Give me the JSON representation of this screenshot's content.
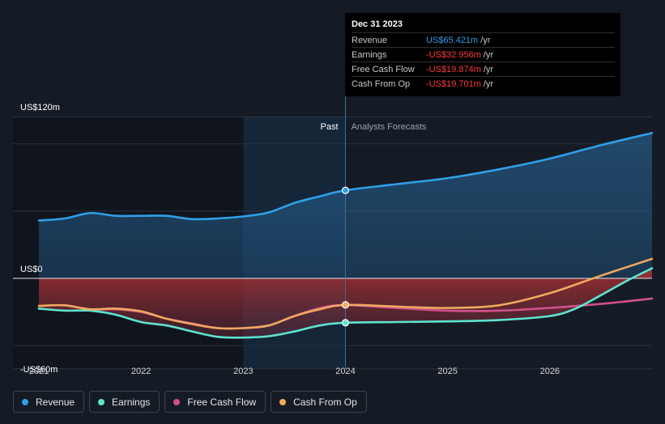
{
  "tooltip": {
    "date": "Dec 31 2023",
    "rows": [
      {
        "label": "Revenue",
        "value": "US$65.421m",
        "unit": "/yr",
        "color": "#2f9fe8"
      },
      {
        "label": "Earnings",
        "value": "-US$32.956m",
        "unit": "/yr",
        "color": "#ff3b3b"
      },
      {
        "label": "Free Cash Flow",
        "value": "-US$19.874m",
        "unit": "/yr",
        "color": "#ff3b3b"
      },
      {
        "label": "Cash From Op",
        "value": "-US$19.701m",
        "unit": "/yr",
        "color": "#ff3b3b"
      }
    ]
  },
  "legend": [
    {
      "label": "Revenue",
      "color": "#2f9fe8"
    },
    {
      "label": "Earnings",
      "color": "#5ee3d0"
    },
    {
      "label": "Free Cash Flow",
      "color": "#d0508c"
    },
    {
      "label": "Cash From Op",
      "color": "#f0a860"
    }
  ],
  "chart_data": {
    "type": "line",
    "past_label": "Past",
    "forecast_label": "Analysts Forecasts",
    "y_tick_labels": [
      {
        "label": "US$120m",
        "value": 120
      },
      {
        "label": "US$0",
        "value": 0
      },
      {
        "label": "-US$60m",
        "value": -60
      }
    ],
    "ylim": [
      -60,
      120
    ],
    "x_ticks": [
      2021,
      2022,
      2023,
      2024,
      2025,
      2026
    ],
    "xlim": [
      2021,
      2027
    ],
    "past_end": 2024,
    "highlight_start": 2023,
    "grid": true,
    "legend_position": "bottom-left",
    "series": [
      {
        "name": "Revenue",
        "color": "#2f9fe8",
        "fill": true,
        "marker_x": 2024,
        "points": [
          [
            2021,
            43
          ],
          [
            2021.25,
            44.5
          ],
          [
            2021.5,
            48.5
          ],
          [
            2021.75,
            46.5
          ],
          [
            2022,
            46.5
          ],
          [
            2022.25,
            46.5
          ],
          [
            2022.5,
            44
          ],
          [
            2022.75,
            44.5
          ],
          [
            2023,
            46
          ],
          [
            2023.25,
            49
          ],
          [
            2023.5,
            56
          ],
          [
            2023.75,
            61
          ],
          [
            2024,
            65.4
          ],
          [
            2024.5,
            70
          ],
          [
            2025,
            74.5
          ],
          [
            2025.5,
            81
          ],
          [
            2026,
            89
          ],
          [
            2026.5,
            99
          ],
          [
            2027,
            108
          ]
        ]
      },
      {
        "name": "Earnings",
        "color": "#5ee3d0",
        "fill": true,
        "marker_x": 2024,
        "points": [
          [
            2021,
            -22.5
          ],
          [
            2021.25,
            -24
          ],
          [
            2021.5,
            -24
          ],
          [
            2021.75,
            -27
          ],
          [
            2022,
            -32.5
          ],
          [
            2022.25,
            -35
          ],
          [
            2022.5,
            -39.5
          ],
          [
            2022.75,
            -43.5
          ],
          [
            2023,
            -44
          ],
          [
            2023.25,
            -43
          ],
          [
            2023.5,
            -39.5
          ],
          [
            2023.75,
            -35
          ],
          [
            2024,
            -33
          ],
          [
            2024.5,
            -32.5
          ],
          [
            2025,
            -32
          ],
          [
            2025.5,
            -31
          ],
          [
            2026,
            -28
          ],
          [
            2026.25,
            -22.5
          ],
          [
            2026.5,
            -12.5
          ],
          [
            2026.75,
            -2
          ],
          [
            2027,
            7.5
          ]
        ]
      },
      {
        "name": "Free Cash Flow",
        "color": "#d0508c",
        "fill": false,
        "points": [
          [
            2021,
            -20.5
          ],
          [
            2021.25,
            -20
          ],
          [
            2021.5,
            -23
          ],
          [
            2021.75,
            -23
          ],
          [
            2022,
            -25
          ],
          [
            2022.25,
            -30
          ],
          [
            2022.5,
            -33.5
          ],
          [
            2022.75,
            -37
          ],
          [
            2023,
            -37
          ],
          [
            2023.25,
            -35
          ],
          [
            2023.5,
            -28
          ],
          [
            2023.75,
            -22
          ],
          [
            2024,
            -19.9
          ],
          [
            2024.5,
            -22
          ],
          [
            2025,
            -24
          ],
          [
            2025.5,
            -24
          ],
          [
            2026,
            -22
          ],
          [
            2026.5,
            -19
          ],
          [
            2027,
            -15
          ]
        ]
      },
      {
        "name": "Cash From Op",
        "color": "#f0a860",
        "fill": false,
        "marker_x": 2024,
        "points": [
          [
            2021,
            -20.5
          ],
          [
            2021.25,
            -20
          ],
          [
            2021.5,
            -23
          ],
          [
            2021.75,
            -22.5
          ],
          [
            2022,
            -24.5
          ],
          [
            2022.25,
            -30
          ],
          [
            2022.5,
            -34
          ],
          [
            2022.75,
            -37
          ],
          [
            2023,
            -37
          ],
          [
            2023.25,
            -35
          ],
          [
            2023.5,
            -28
          ],
          [
            2023.75,
            -23
          ],
          [
            2024,
            -19.7
          ],
          [
            2024.5,
            -21
          ],
          [
            2025,
            -22
          ],
          [
            2025.5,
            -20
          ],
          [
            2026,
            -11
          ],
          [
            2026.5,
            2
          ],
          [
            2027,
            14.5
          ]
        ]
      }
    ]
  }
}
